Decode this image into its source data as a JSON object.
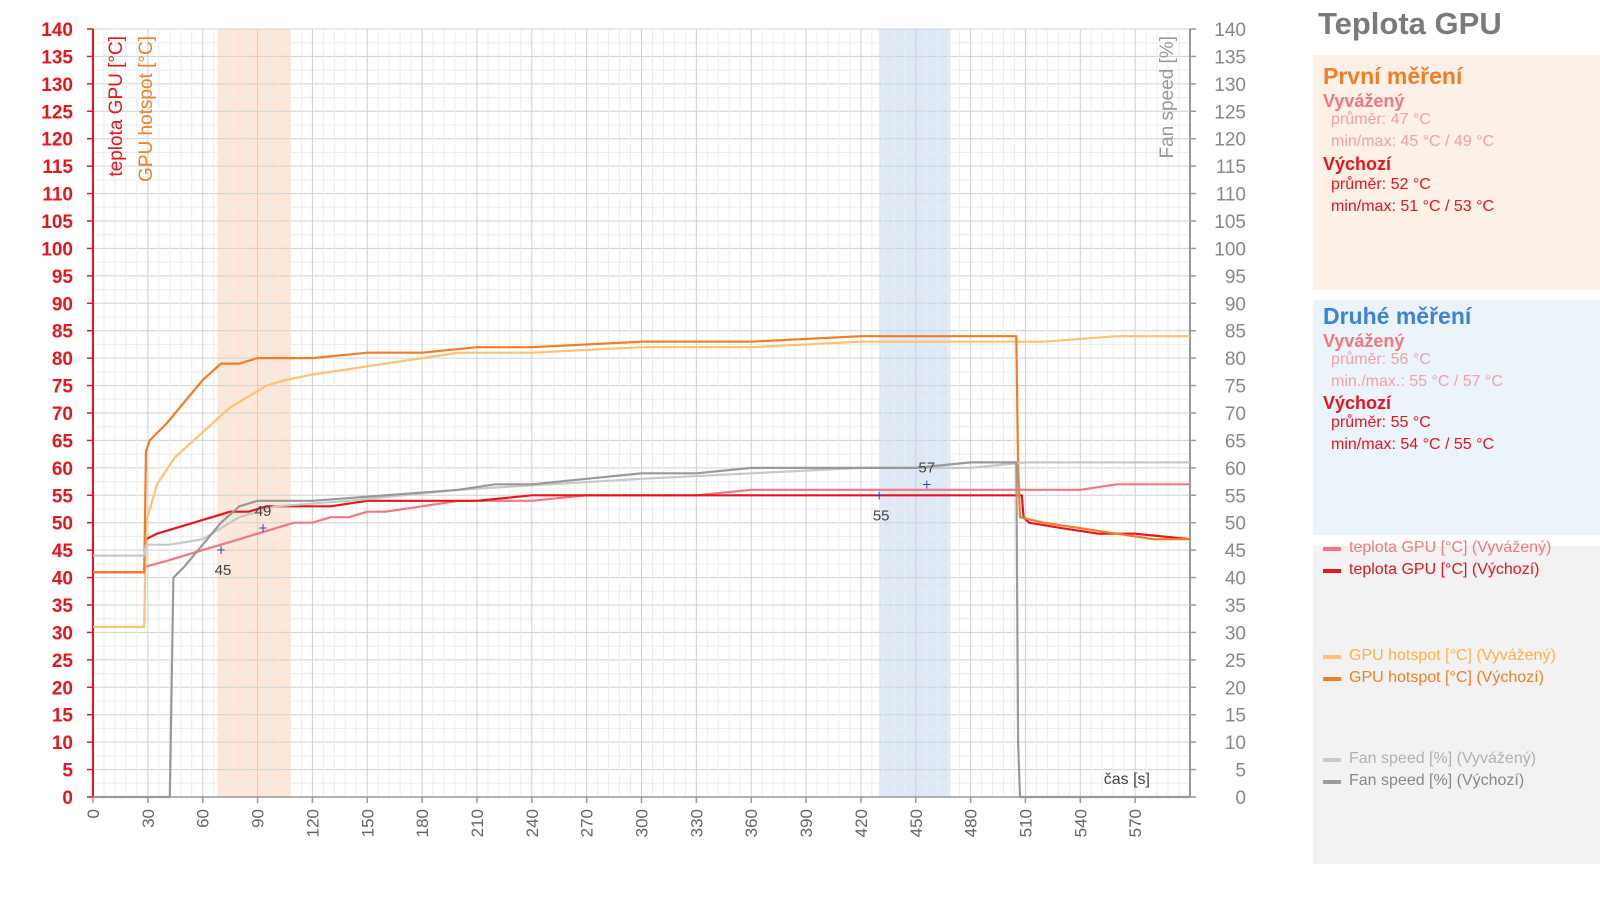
{
  "chart_data": {
    "type": "line",
    "title": "Teplota GPU",
    "x_axis": {
      "label": "čas [s]",
      "min": 0,
      "max": 600,
      "ticks": [
        0,
        30,
        60,
        90,
        120,
        150,
        180,
        210,
        240,
        270,
        300,
        330,
        360,
        390,
        420,
        450,
        480,
        510,
        540,
        570
      ]
    },
    "y_left": {
      "ylim": [
        0,
        140
      ],
      "ticks": [
        0,
        5,
        10,
        15,
        20,
        25,
        30,
        35,
        40,
        45,
        50,
        55,
        60,
        65,
        70,
        75,
        80,
        85,
        90,
        95,
        100,
        105,
        110,
        115,
        120,
        125,
        130,
        135,
        140
      ],
      "labels": [
        "teplota GPU [°C]",
        "GPU hotspot [°C]"
      ]
    },
    "y_right": {
      "ylim": [
        0,
        140
      ],
      "ticks": [
        0,
        5,
        10,
        15,
        20,
        25,
        30,
        35,
        40,
        45,
        50,
        55,
        60,
        65,
        70,
        75,
        80,
        85,
        90,
        95,
        100,
        105,
        110,
        115,
        120,
        125,
        130,
        135,
        140
      ],
      "label": "Fan speed [%]"
    },
    "grid": true,
    "shaded_regions": [
      {
        "x": [
          68,
          108
        ],
        "color": "#fde7d8"
      },
      {
        "x": [
          430,
          469
        ],
        "color": "#dde9f7"
      }
    ],
    "series": [
      {
        "name": "teplota GPU [°C] (Vyvážený)",
        "color": "#f07882",
        "x": [
          0,
          28,
          29,
          40,
          50,
          60,
          70,
          80,
          90,
          100,
          110,
          120,
          130,
          140,
          150,
          160,
          180,
          200,
          220,
          240,
          270,
          300,
          330,
          360,
          390,
          420,
          450,
          480,
          510,
          540,
          560,
          585,
          600
        ],
        "y": [
          41,
          41,
          42,
          43,
          44,
          45,
          46,
          47,
          48,
          49,
          50,
          50,
          51,
          51,
          52,
          52,
          53,
          54,
          54,
          54,
          55,
          55,
          55,
          56,
          56,
          56,
          56,
          56,
          56,
          56,
          57,
          57,
          57
        ]
      },
      {
        "name": "teplota GPU [°C] (Výchozí)",
        "color": "#e8141e",
        "x": [
          0,
          28,
          29,
          35,
          45,
          55,
          65,
          75,
          85,
          95,
          110,
          130,
          150,
          180,
          210,
          240,
          300,
          360,
          420,
          470,
          508,
          509,
          512,
          530,
          550,
          570,
          600
        ],
        "y": [
          41,
          41,
          47,
          48,
          49,
          50,
          51,
          52,
          52,
          53,
          53,
          53,
          54,
          54,
          54,
          55,
          55,
          55,
          55,
          55,
          55,
          51,
          50,
          49,
          48,
          48,
          47
        ]
      },
      {
        "name": "GPU hotspot [°C] (Vyvážený)",
        "color": "#ffc274",
        "x": [
          0,
          28,
          29,
          35,
          45,
          55,
          65,
          75,
          85,
          95,
          105,
          120,
          140,
          160,
          180,
          200,
          240,
          300,
          360,
          420,
          480,
          520,
          560,
          600
        ],
        "y": [
          31,
          31,
          50,
          57,
          62,
          65,
          68,
          71,
          73,
          75,
          76,
          77,
          78,
          79,
          80,
          81,
          81,
          82,
          82,
          83,
          83,
          83,
          84,
          84
        ]
      },
      {
        "name": "GPU hotspot [°C] (Výchozí)",
        "color": "#f07e26",
        "x": [
          0,
          28,
          29,
          31,
          40,
          50,
          60,
          70,
          80,
          90,
          100,
          120,
          150,
          180,
          210,
          240,
          300,
          360,
          420,
          480,
          505,
          506,
          507,
          520,
          540,
          560,
          580,
          600
        ],
        "y": [
          41,
          41,
          63,
          65,
          68,
          72,
          76,
          79,
          79,
          80,
          80,
          80,
          81,
          81,
          82,
          82,
          83,
          83,
          84,
          84,
          84,
          60,
          51,
          50,
          49,
          48,
          47,
          47
        ]
      },
      {
        "name": "Fan speed [%] (Vyvážený)",
        "color": "#c8c8c8",
        "x": [
          0,
          28,
          29,
          42,
          60,
          70,
          80,
          100,
          140,
          170,
          200,
          250,
          300,
          360,
          420,
          480,
          510,
          550,
          600
        ],
        "y": [
          44,
          44,
          46,
          46,
          47,
          49,
          51,
          53,
          54,
          55,
          56,
          57,
          58,
          59,
          60,
          60,
          61,
          61,
          61
        ]
      },
      {
        "name": "Fan speed [%] (Výchozí)",
        "color": "#999999",
        "x": [
          0,
          42,
          43,
          44,
          50,
          60,
          70,
          80,
          90,
          120,
          160,
          200,
          220,
          240,
          270,
          300,
          330,
          360,
          390,
          420,
          450,
          480,
          505,
          506,
          507,
          600
        ],
        "y": [
          0,
          0,
          20,
          40,
          42,
          46,
          50,
          53,
          54,
          54,
          55,
          56,
          57,
          57,
          58,
          59,
          59,
          60,
          60,
          60,
          60,
          61,
          61,
          10,
          0,
          0
        ]
      }
    ],
    "annotations": [
      {
        "text": "45",
        "x": 70,
        "y": 45
      },
      {
        "text": "49",
        "x": 93,
        "y": 49
      },
      {
        "text": "55",
        "x": 430,
        "y": 55
      },
      {
        "text": "57",
        "x": 456,
        "y": 57
      }
    ]
  },
  "panel": {
    "title": "Teplota GPU",
    "first": {
      "heading": "První měření",
      "balanced": {
        "label": "Vyvážený",
        "avg": "průměr: 47 °C",
        "minmax": "min/max: 45 °C / 49 °C"
      },
      "default": {
        "label": "Výchozí",
        "avg": "průměr: 52  °C",
        "minmax": "min/max: 51  °C / 53  °C"
      }
    },
    "second": {
      "heading": "Druhé měření",
      "balanced": {
        "label": "Vyvážený",
        "avg": "průměr: 56 °C",
        "minmax": "min./max.: 55 °C / 57 °C"
      },
      "default": {
        "label": "Výchozí",
        "avg": "průměr: 55  °C",
        "minmax": "min/max: 54  °C / 55  °C"
      }
    },
    "legend": [
      "teplota GPU [°C] (Vyvážený)",
      "teplota GPU [°C] (Výchozí)",
      "GPU hotspot [°C] (Vyvážený)",
      "GPU hotspot [°C] (Výchozí)",
      "Fan speed [%] (Vyvážený)",
      "Fan speed [%] (Výchozí)"
    ]
  },
  "colors": {
    "axis_red": "#e8141e",
    "axis_orange": "#f07e26",
    "axis_gray": "#999999",
    "first_heading": "#f07e26",
    "second_heading": "#3b82d8",
    "balanced_label": "#f07882",
    "default_label": "#e8141e"
  }
}
